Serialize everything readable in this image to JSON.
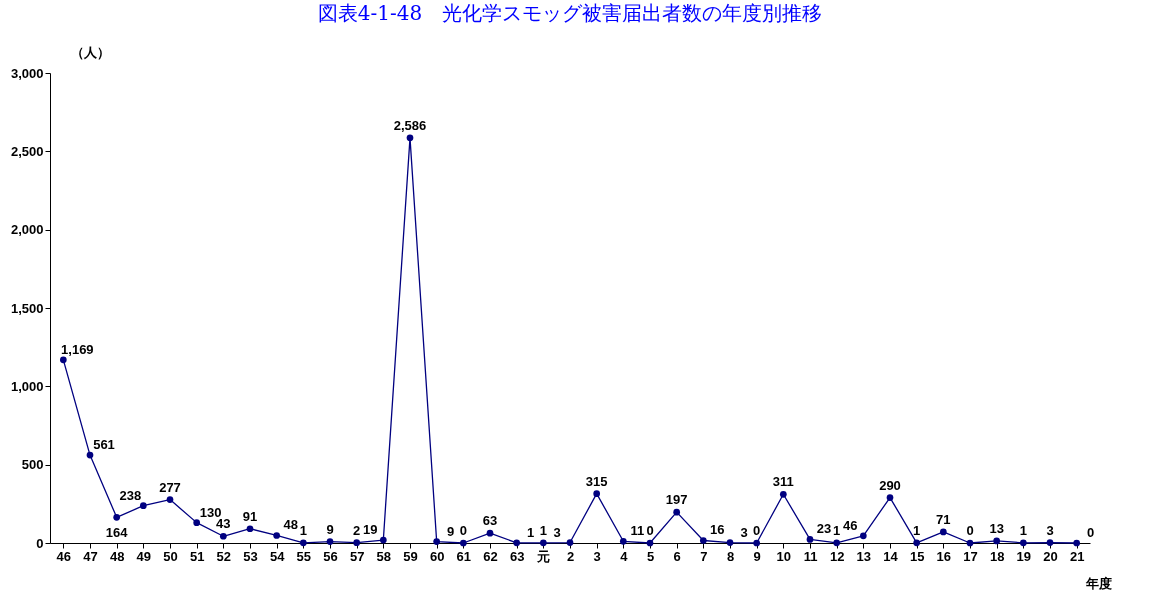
{
  "chart_data": {
    "type": "line",
    "title": "図表4‐1‐48　光化学スモッグ被害届出者数の年度別推移",
    "ylabel": "（人）",
    "xlabel": "年度",
    "categories": [
      "46",
      "47",
      "48",
      "49",
      "50",
      "51",
      "52",
      "53",
      "54",
      "55",
      "56",
      "57",
      "58",
      "59",
      "60",
      "61",
      "62",
      "63",
      "元",
      "2",
      "3",
      "4",
      "5",
      "6",
      "7",
      "8",
      "9",
      "10",
      "11",
      "12",
      "13",
      "14",
      "15",
      "16",
      "17",
      "18",
      "19",
      "20",
      "21"
    ],
    "series": [
      {
        "color": "#000080",
        "values": [
          1169,
          561,
          164,
          238,
          277,
          130,
          43,
          91,
          48,
          1,
          9,
          2,
          19,
          2586,
          9,
          0,
          63,
          1,
          1,
          3,
          315,
          11,
          0,
          197,
          16,
          3,
          0,
          311,
          23,
          1,
          46,
          290,
          1,
          71,
          0,
          13,
          1,
          3,
          0
        ],
        "value_labels": [
          "1,169",
          "561",
          "164",
          "238",
          "277",
          "130",
          "43",
          "91",
          "48",
          "1",
          "9",
          "2",
          "19",
          "2,586",
          "9",
          "0",
          "63",
          "1",
          "1",
          "3",
          "315",
          "11",
          "0",
          "197",
          "16",
          "3",
          "0",
          "311",
          "23",
          "1",
          "46",
          "290",
          "1",
          "71",
          "0",
          "13",
          "1",
          "3",
          "0"
        ]
      }
    ],
    "ylim": [
      0,
      3000
    ],
    "yticks": [
      0,
      {
        "value": 500,
        "label": "500"
      },
      {
        "value": 1000,
        "label": "1,000"
      },
      {
        "value": 1500,
        "label": "1,500"
      },
      {
        "value": 2000,
        "label": "2,000"
      },
      {
        "value": 2500,
        "label": "2,500"
      },
      {
        "value": 3000,
        "label": "3,000"
      }
    ],
    "grid": false,
    "legend": false,
    "marker": "circle",
    "line_style": "solid"
  }
}
